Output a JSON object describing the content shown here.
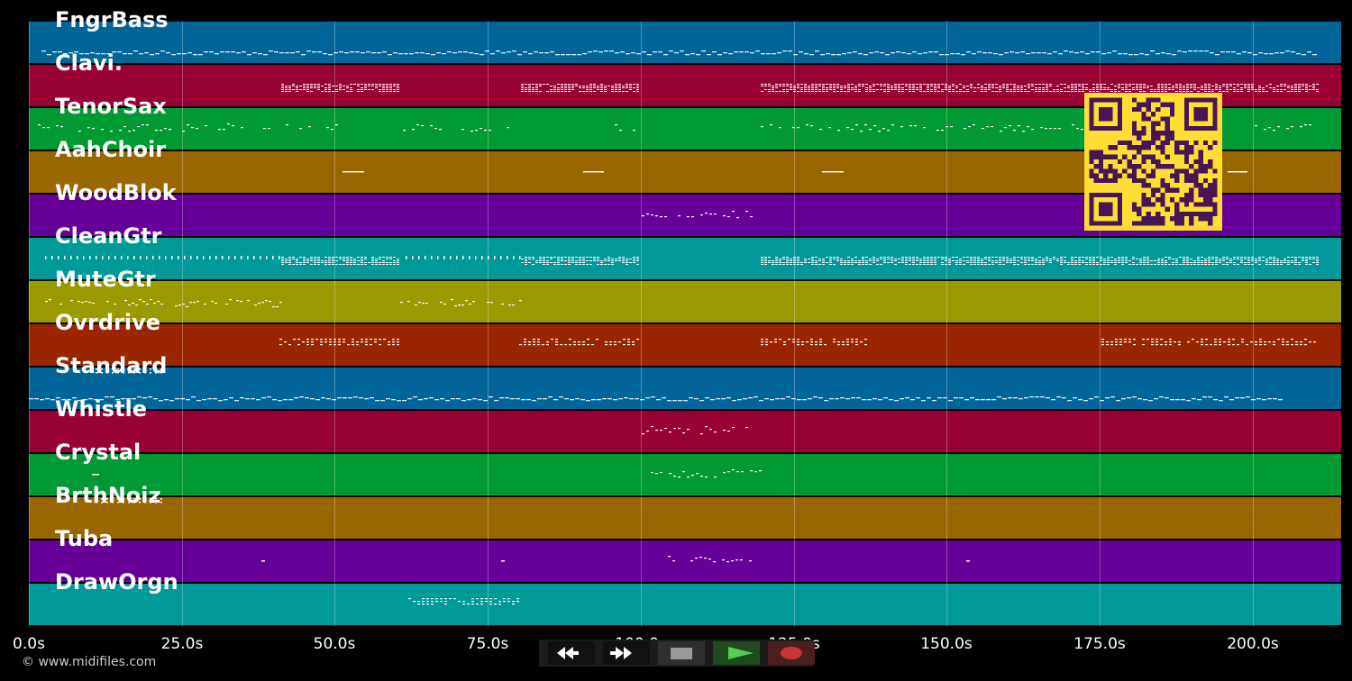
{
  "tracks": [
    {
      "name": "FngrBass",
      "color": "#006699",
      "pattern": "bass"
    },
    {
      "name": "Clavi.",
      "color": "#990033",
      "pattern": "clavi"
    },
    {
      "name": "TenorSax",
      "color": "#009933",
      "pattern": "sax"
    },
    {
      "name": "AahChoir",
      "color": "#996600",
      "pattern": "choir"
    },
    {
      "name": "WoodBlok",
      "color": "#660099",
      "pattern": "wood"
    },
    {
      "name": "CleanGtr",
      "color": "#009999",
      "pattern": "cleangtr"
    },
    {
      "name": "MuteGtr",
      "color": "#999900",
      "pattern": "mutegtr"
    },
    {
      "name": "Ovrdrive",
      "color": "#992600",
      "pattern": "ovrdrive"
    },
    {
      "name": "Standard",
      "color": "#006699",
      "pattern": "drums"
    },
    {
      "name": "Whistle",
      "color": "#990033",
      "pattern": "whistle"
    },
    {
      "name": "Crystal",
      "color": "#009933",
      "pattern": "crystal"
    },
    {
      "name": "BrthNoiz",
      "color": "#996600",
      "pattern": "breath"
    },
    {
      "name": "Tuba",
      "color": "#660099",
      "pattern": "tuba"
    },
    {
      "name": "DrawOrgn",
      "color": "#009999",
      "pattern": "organ"
    }
  ],
  "axis": {
    "ticks": [
      "0.0s",
      "25.0s",
      "50.0s",
      "75.0s",
      "100.0s",
      "125.0s",
      "150.0s",
      "175.0s",
      "200.0s"
    ]
  },
  "credit": "© www.midifiles.com",
  "qr": {
    "fg": "#ffdd33",
    "bg": "#4a1555"
  },
  "transport": {
    "rewind": "rewind-icon",
    "forward": "fast-forward-icon",
    "stop": "stop-icon",
    "play": "play-icon",
    "record": "record-icon"
  }
}
